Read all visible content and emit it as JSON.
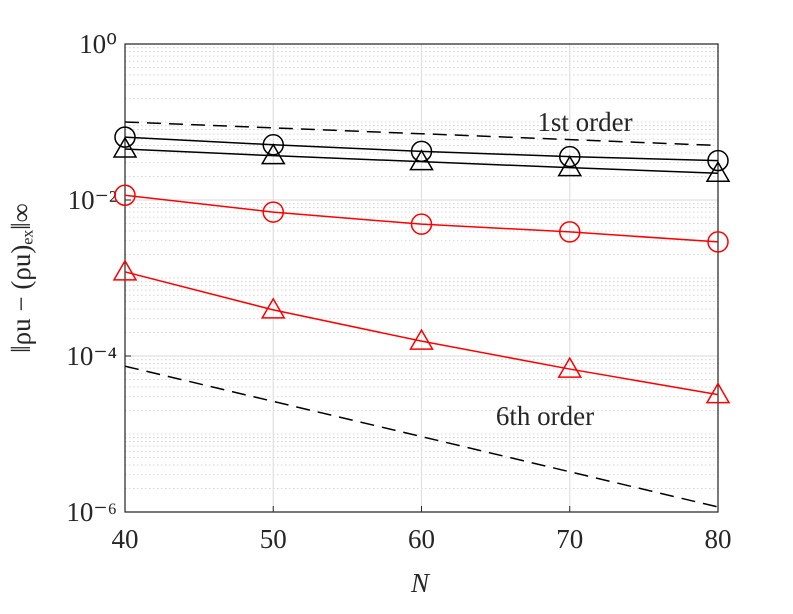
{
  "chart_data": {
    "type": "line",
    "xlabel": "N",
    "ylabel": "‖ρu − (ρu)ₑₓ‖∞",
    "x": [
      40,
      50,
      60,
      70,
      80
    ],
    "xlim": [
      40,
      80
    ],
    "xticks": [
      40,
      50,
      60,
      70,
      80
    ],
    "ylim": [
      1e-06,
      1
    ],
    "yticks": [
      {
        "value": 1,
        "label": "10⁰"
      },
      {
        "value": 0.01,
        "label": "10⁻²"
      },
      {
        "value": 0.0001,
        "label": "10⁻⁴"
      },
      {
        "value": 1e-06,
        "label": "10⁻⁶"
      }
    ],
    "yscale": "log",
    "grid": true,
    "minor_grid": true,
    "series": [
      {
        "color": "#000000",
        "marker": "circle",
        "values": [
          0.064,
          0.051,
          0.042,
          0.036,
          0.032
        ]
      },
      {
        "color": "#000000",
        "marker": "triangle",
        "values": [
          0.045,
          0.037,
          0.031,
          0.026,
          0.022
        ]
      },
      {
        "color": "#ff0000",
        "marker": "circle",
        "values": [
          0.0115,
          0.007,
          0.0049,
          0.0039,
          0.0029
        ]
      },
      {
        "color": "#ff0000",
        "marker": "triangle",
        "values": [
          0.0012,
          0.00039,
          0.000155,
          6.8e-05,
          3.2e-05
        ]
      },
      {
        "color": "#000000",
        "dashed": true,
        "values": [
          0.1,
          null,
          null,
          null,
          0.05
        ]
      },
      {
        "color": "#000000",
        "dashed": true,
        "values": [
          7.4e-05,
          null,
          null,
          null,
          1.16e-06
        ]
      }
    ],
    "annotations": [
      "1st order",
      "6th order"
    ]
  }
}
